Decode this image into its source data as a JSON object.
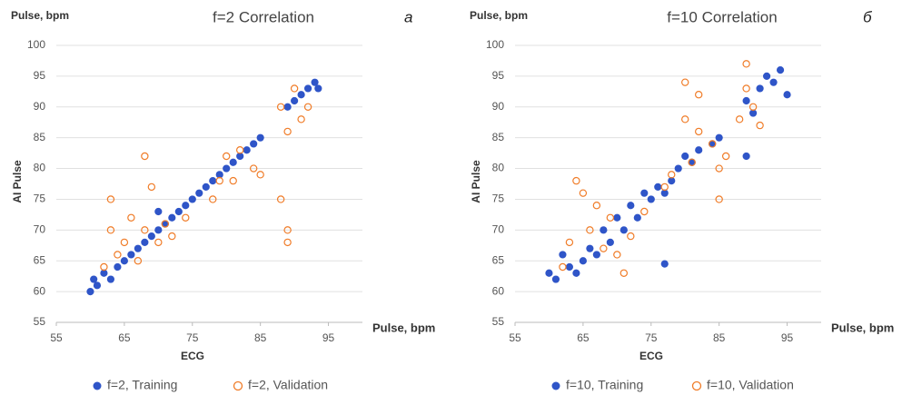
{
  "chart_data": [
    {
      "type": "scatter",
      "title": "f=2 Correlation",
      "panel_label": "а",
      "y_unit": "Pulse, bpm",
      "x_unit": "Pulse, bpm",
      "xlabel": "ECG",
      "ylabel": "AI Pulse",
      "xlim": [
        55,
        100
      ],
      "ylim": [
        55,
        100
      ],
      "xticks": [
        55,
        65,
        75,
        85,
        95
      ],
      "yticks": [
        55,
        60,
        65,
        70,
        75,
        80,
        85,
        90,
        95,
        100
      ],
      "grid": true,
      "series": [
        {
          "name": "f=2, Training",
          "color": "#2f55c8",
          "marker": "filled",
          "x": [
            60,
            60.5,
            61,
            62,
            63,
            64,
            65,
            66,
            67,
            68,
            69,
            70,
            70,
            71,
            72,
            73,
            74,
            75,
            76,
            77,
            78,
            79,
            80,
            81,
            82,
            83,
            84,
            85,
            89,
            90,
            91,
            92,
            93,
            93.5
          ],
          "values": [
            60,
            62,
            61,
            63,
            62,
            64,
            65,
            66,
            67,
            68,
            69,
            70,
            73,
            71,
            72,
            73,
            74,
            75,
            76,
            77,
            78,
            79,
            80,
            81,
            82,
            83,
            84,
            85,
            90,
            91,
            92,
            93,
            94,
            93
          ]
        },
        {
          "name": "f=2, Validation",
          "color": "#f07c28",
          "marker": "open",
          "x": [
            62,
            63,
            63,
            64,
            65,
            66,
            67,
            68,
            68,
            69,
            70,
            71,
            72,
            74,
            78,
            79,
            80,
            81,
            82,
            84,
            85,
            88,
            89,
            89,
            89,
            90,
            91,
            92,
            88
          ],
          "values": [
            64,
            70,
            75,
            66,
            68,
            72,
            65,
            70,
            82,
            77,
            68,
            71,
            69,
            72,
            75,
            78,
            82,
            78,
            83,
            80,
            79,
            75,
            68,
            70,
            86,
            93,
            88,
            90,
            90
          ]
        }
      ]
    },
    {
      "type": "scatter",
      "title": "f=10 Correlation",
      "panel_label": "б",
      "y_unit": "Pulse, bpm",
      "x_unit": "Pulse, bpm",
      "xlabel": "ECG",
      "ylabel": "AI Pulse",
      "xlim": [
        55,
        100
      ],
      "ylim": [
        55,
        100
      ],
      "xticks": [
        55,
        65,
        75,
        85,
        95
      ],
      "yticks": [
        55,
        60,
        65,
        70,
        75,
        80,
        85,
        90,
        95,
        100
      ],
      "grid": true,
      "series": [
        {
          "name": "f=10, Training",
          "color": "#2f55c8",
          "marker": "filled",
          "x": [
            60,
            61,
            62,
            63,
            64,
            65,
            66,
            67,
            68,
            69,
            70,
            71,
            72,
            73,
            74,
            75,
            76,
            77,
            77,
            78,
            79,
            80,
            81,
            82,
            84,
            85,
            89,
            89,
            90,
            91,
            92,
            93,
            94,
            95
          ],
          "values": [
            63,
            62,
            66,
            64,
            63,
            65,
            67,
            66,
            70,
            68,
            72,
            70,
            74,
            72,
            76,
            75,
            77,
            76,
            64.5,
            78,
            80,
            82,
            81,
            83,
            84,
            85,
            82,
            91,
            89,
            93,
            95,
            94,
            96,
            92
          ]
        },
        {
          "name": "f=10, Validation",
          "color": "#f07c28",
          "marker": "open",
          "x": [
            62,
            63,
            64,
            65,
            66,
            67,
            68,
            69,
            70,
            71,
            72,
            74,
            77,
            78,
            80,
            80,
            81,
            82,
            82,
            84,
            85,
            85,
            86,
            88,
            89,
            89,
            90,
            91
          ],
          "values": [
            64,
            68,
            78,
            76,
            70,
            74,
            67,
            72,
            66,
            63,
            69,
            73,
            77,
            79,
            94,
            88,
            81,
            86,
            92,
            84,
            75,
            80,
            82,
            88,
            97,
            93,
            90,
            87
          ]
        }
      ]
    }
  ]
}
